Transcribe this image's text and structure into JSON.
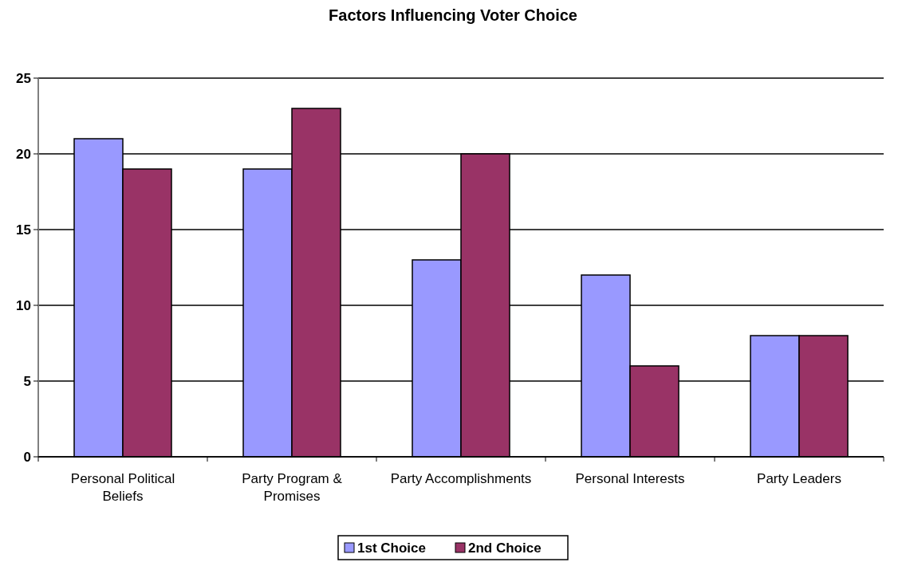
{
  "chart_data": {
    "type": "bar",
    "title": "Factors Influencing Voter Choice",
    "categories": [
      "Personal Political Beliefs",
      "Party Program & Promises",
      "Party Accomplishments",
      "Personal Interests",
      "Party Leaders"
    ],
    "series": [
      {
        "name": "1st Choice",
        "color": "#9999ff",
        "values": [
          21,
          19,
          13,
          12,
          8
        ]
      },
      {
        "name": "2nd Choice",
        "color": "#993366",
        "values": [
          19,
          23,
          20,
          6,
          8
        ]
      }
    ],
    "ylim": [
      0,
      25
    ],
    "yticks": [
      0,
      5,
      10,
      15,
      20,
      25
    ],
    "grid": "y",
    "legend": "bottom"
  }
}
